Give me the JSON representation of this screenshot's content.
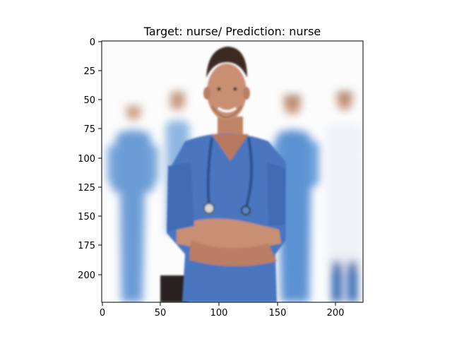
{
  "figure": {
    "title": "Target: nurse/ Prediction: nurse"
  },
  "axes": {
    "x_ticks": [
      "0",
      "50",
      "100",
      "150",
      "200"
    ],
    "y_ticks": [
      "0",
      "25",
      "50",
      "75",
      "100",
      "125",
      "150",
      "175",
      "200"
    ]
  },
  "image": {
    "content": "photo-nurses",
    "colors": {
      "background": "#fcfcfd",
      "scrubs": "#4a76bf",
      "scrubs_blur": "#6b9bd6",
      "skin": "#c98f72",
      "hair": "#3a2a22",
      "white_coat": "#eef2f7",
      "dark_object": "#2a2320"
    }
  },
  "chart_data": {
    "type": "image",
    "xlim": [
      -0.5,
      223.5
    ],
    "ylim": [
      223.5,
      -0.5
    ],
    "x_ticks": [
      0,
      50,
      100,
      150,
      200
    ],
    "y_ticks": [
      0,
      25,
      50,
      75,
      100,
      125,
      150,
      175,
      200
    ],
    "title": "Target: nurse/ Prediction: nurse"
  }
}
